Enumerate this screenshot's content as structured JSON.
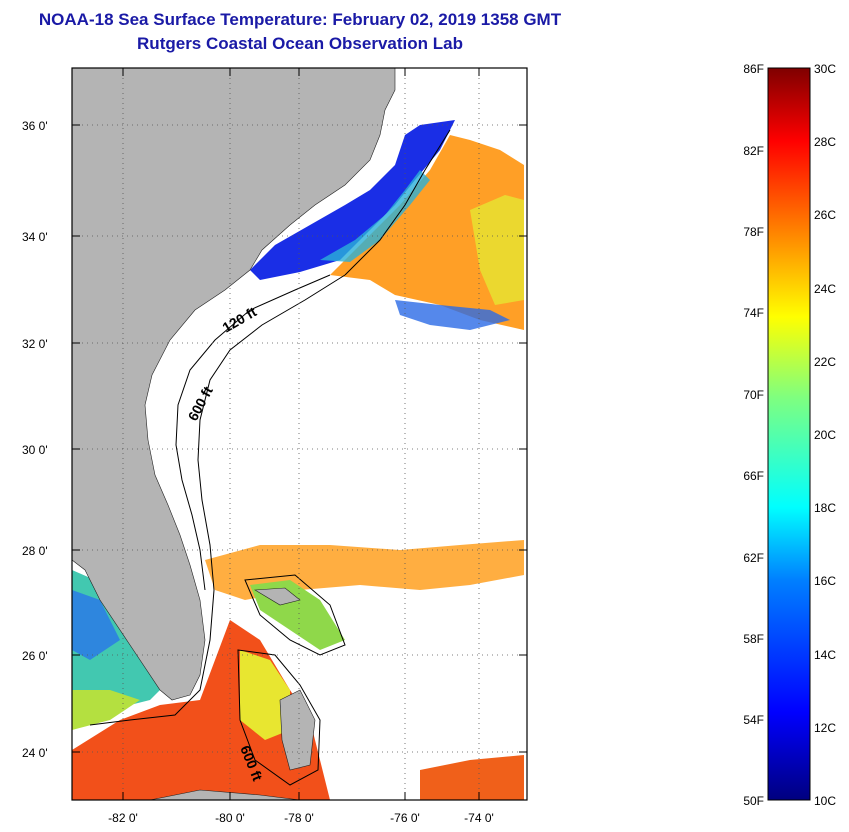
{
  "title": "NOAA-18 Sea Surface Temperature:  February 02, 2019 1358 GMT",
  "subtitle": "Rutgers Coastal Ocean Observation Lab",
  "map": {
    "lat_labels": [
      "36 0'",
      "34 0'",
      "32 0'",
      "30 0'",
      "28 0'",
      "26 0'",
      "24 0'"
    ],
    "lon_labels": [
      "-82 0'",
      "-80 0'",
      "-78 0'",
      "-76 0'",
      "-74 0'"
    ],
    "contour_labels": [
      "120 ft",
      "600 ft",
      "600 ft"
    ],
    "colors": {
      "land": "#b4b4b4",
      "cloud": "#ffffff"
    }
  },
  "colorbar": {
    "fahrenheit_labels": [
      "86F",
      "82F",
      "78F",
      "74F",
      "70F",
      "66F",
      "62F",
      "58F",
      "54F",
      "50F"
    ],
    "celsius_labels": [
      "30C",
      "28C",
      "26C",
      "24C",
      "22C",
      "20C",
      "18C",
      "16C",
      "14C",
      "12C",
      "10C"
    ],
    "colors": [
      "#00007f",
      "#0000ff",
      "#007fff",
      "#00ffff",
      "#7fff7f",
      "#ffff00",
      "#ff7f00",
      "#ff0000",
      "#7f0000"
    ]
  }
}
